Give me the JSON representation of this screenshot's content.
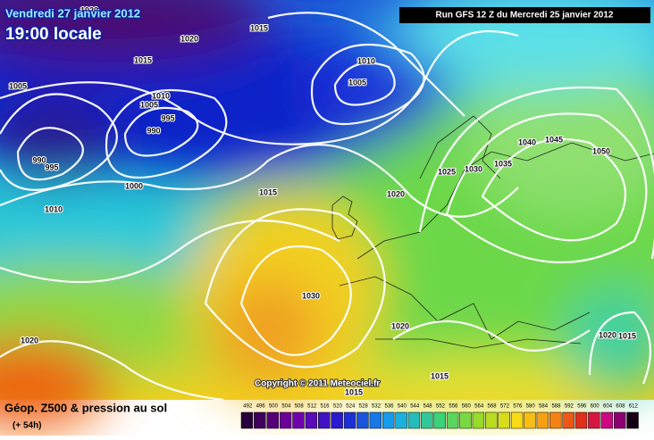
{
  "header": {
    "date": "Vendredi 27 janvier 2012",
    "time": "19:00 locale",
    "run": "Run GFS 12 Z du Mercredi 25 janvier 2012"
  },
  "copyright": "Copyright © 2011 Meteociel.fr",
  "legend": {
    "title": "Géop. Z500 & pression au sol",
    "lead": "(+ 54h)",
    "scale": [
      "492",
      "496",
      "500",
      "504",
      "508",
      "512",
      "516",
      "520",
      "524",
      "528",
      "532",
      "536",
      "540",
      "544",
      "548",
      "552",
      "556",
      "560",
      "564",
      "568",
      "572",
      "576",
      "580",
      "584",
      "588",
      "592",
      "596",
      "600",
      "604",
      "608",
      "612"
    ]
  },
  "isobar_labels": [
    "1020",
    "1020",
    "1015",
    "1015",
    "1005",
    "1010",
    "1005",
    "995",
    "990",
    "990",
    "995",
    "1000",
    "1010",
    "1015",
    "1010",
    "1005",
    "1020",
    "1025",
    "1030",
    "1035",
    "1040",
    "1045",
    "1050",
    "1030",
    "1020",
    "1015",
    "1015",
    "1020",
    "1015",
    "1020"
  ]
}
